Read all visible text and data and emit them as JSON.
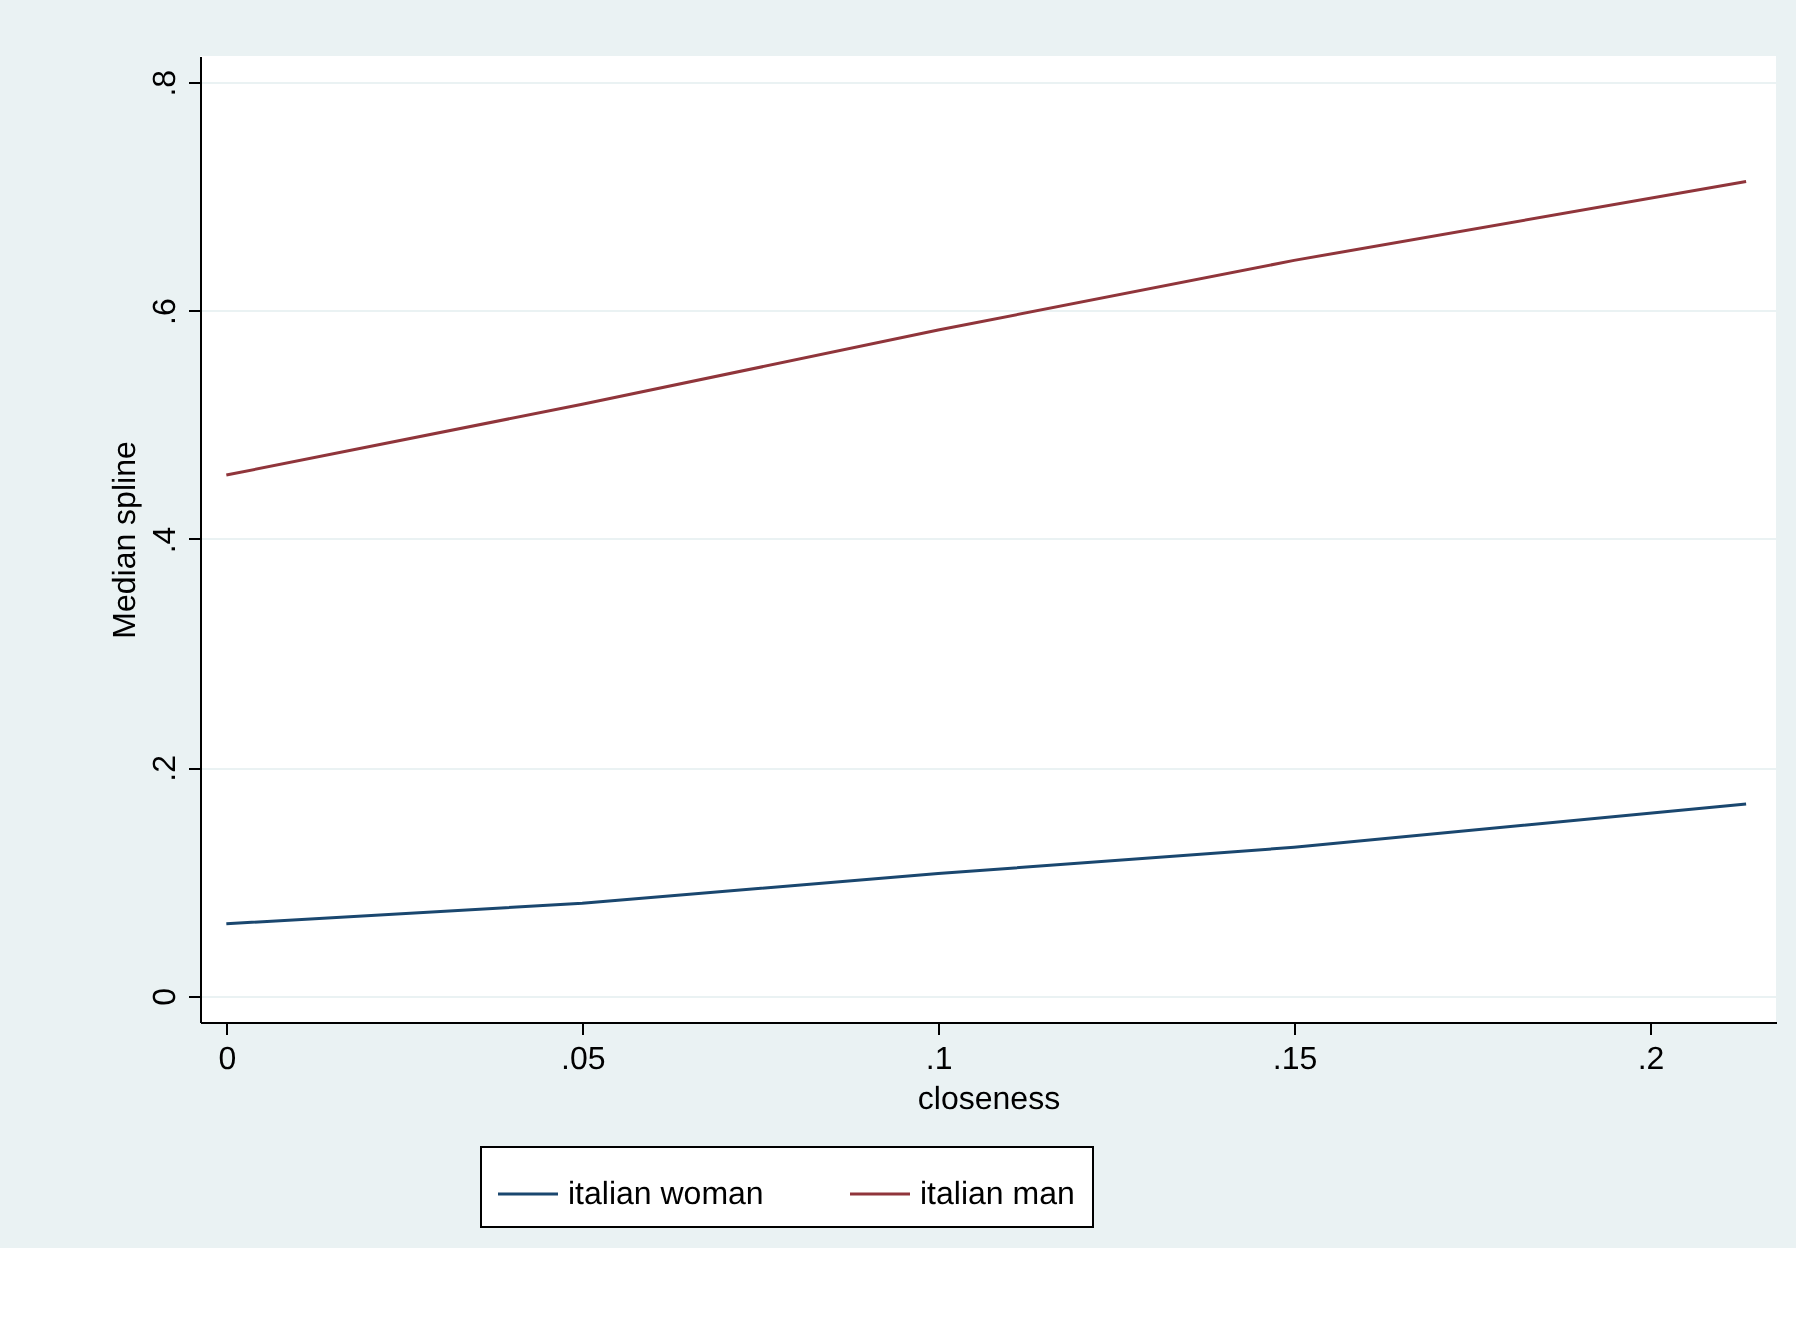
{
  "chart_data": {
    "type": "line",
    "xlabel": "closeness",
    "ylabel": "Median spline",
    "x": [
      0,
      0.05,
      0.1,
      0.15,
      0.2135
    ],
    "series": [
      {
        "name": "italian woman",
        "color": "#1a476f",
        "values": [
          0.063,
          0.081,
          0.107,
          0.13,
          0.168
        ]
      },
      {
        "name": "italian man",
        "color": "#90353b",
        "values": [
          0.456,
          0.518,
          0.583,
          0.644,
          0.713
        ]
      }
    ],
    "xlim": [
      -0.0037,
      0.2177
    ],
    "ylim": [
      -0.023,
      0.823
    ],
    "xticks": [
      {
        "value": 0,
        "label": "0"
      },
      {
        "value": 0.05,
        "label": ".05"
      },
      {
        "value": 0.1,
        "label": ".1"
      },
      {
        "value": 0.15,
        "label": ".15"
      },
      {
        "value": 0.2,
        "label": ".2"
      }
    ],
    "yticks": [
      {
        "value": 0,
        "label": "0"
      },
      {
        "value": 0.2,
        "label": ".2"
      },
      {
        "value": 0.4,
        "label": ".4"
      },
      {
        "value": 0.6,
        "label": ".6"
      },
      {
        "value": 0.8,
        "label": ".8"
      }
    ],
    "grid": "y",
    "legend": "bottom",
    "marker": "none",
    "line_style": "solid"
  }
}
